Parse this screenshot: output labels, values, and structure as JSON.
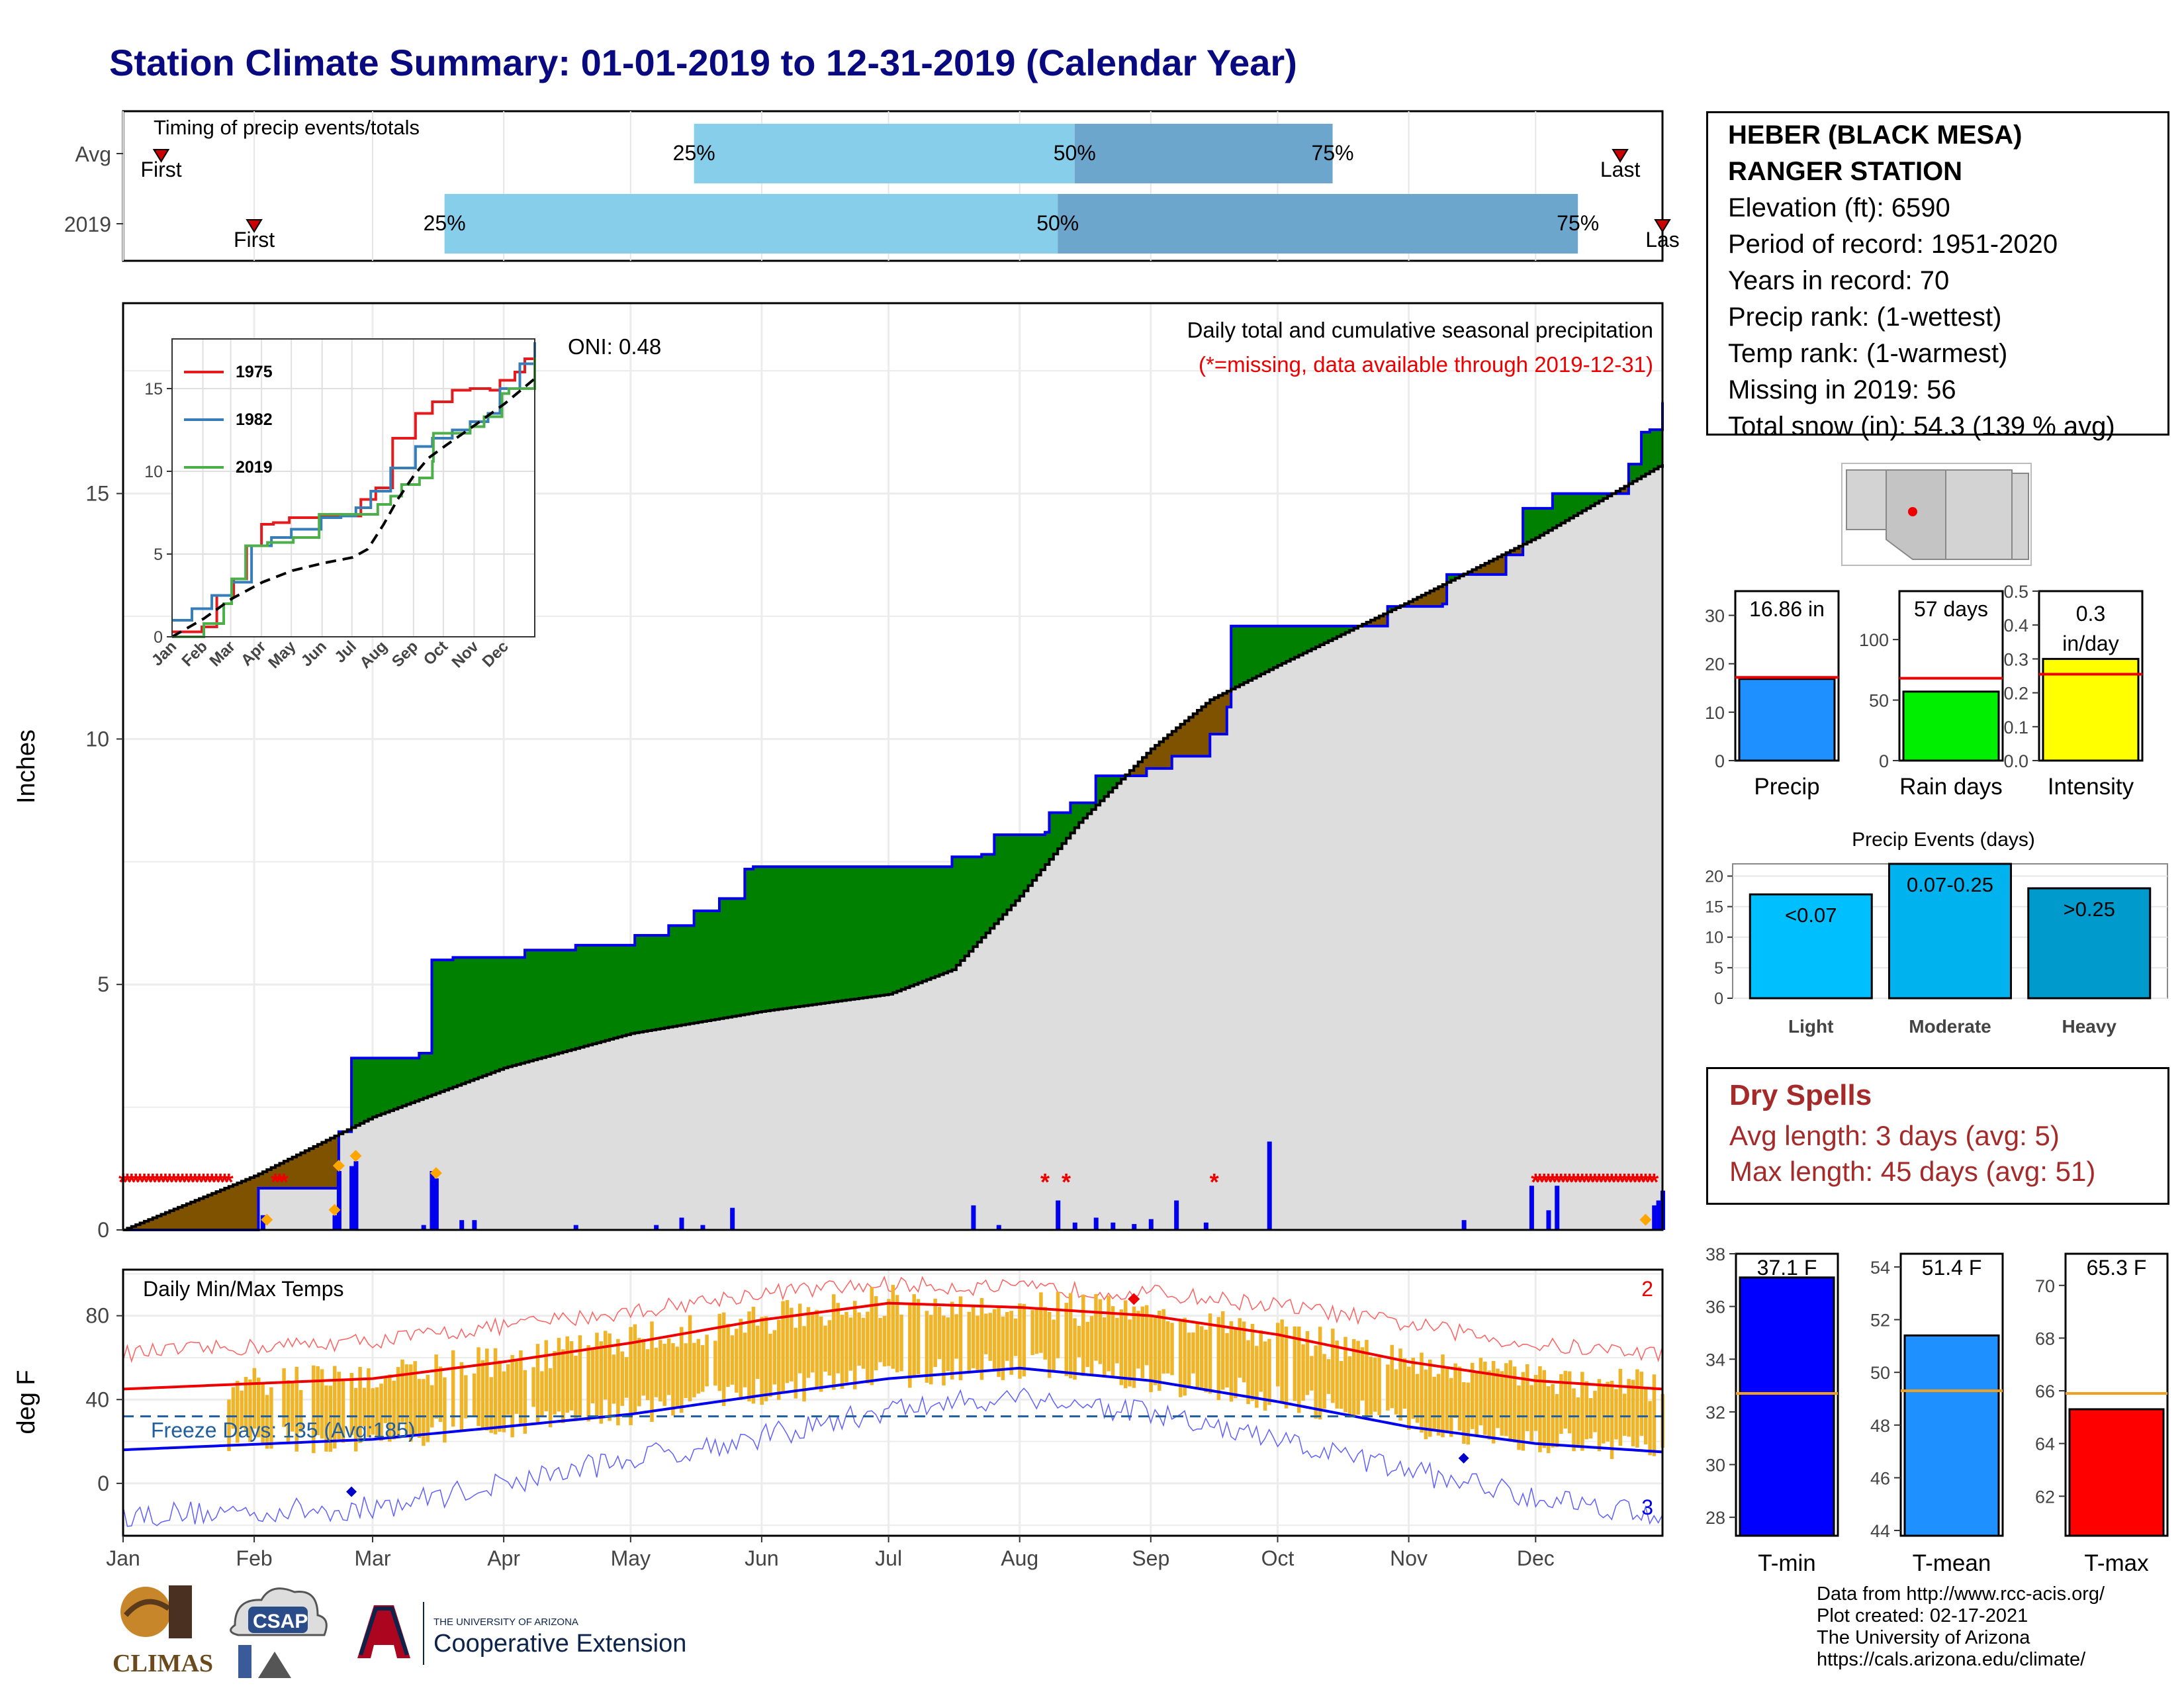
{
  "title": "Station Climate Summary: 01-01-2019 to 12-31-2019 (Calendar Year)",
  "station": {
    "name_line1": "HEBER (BLACK MESA)",
    "name_line2": "RANGER STATION",
    "elevation": "Elevation (ft): 6590",
    "period": "Period of record: 1951-2020",
    "years": "Years in record: 70",
    "precip_rank": "Precip rank:  (1-wettest)",
    "temp_rank": "Temp rank:  (1-warmest)",
    "missing": "Missing in 2019: 56",
    "snow": "Total snow (in): 54.3 (139 % avg)"
  },
  "dry_spells": {
    "title": "Dry Spells",
    "avg": "Avg length: 3 days (avg: 5)",
    "max": "Max length: 45 days (avg: 51)"
  },
  "credits": {
    "line1": "Data from http://www.rcc-acis.org/",
    "line2": "Plot created: 02-17-2021",
    "line3": "The University of Arizona",
    "line4": "https://cals.arizona.edu/climate/"
  },
  "logos": {
    "climas": "CLIMAS",
    "csap": "CSAP",
    "ua_small": "THE UNIVERSITY OF ARIZONA",
    "ua_ext": "Cooperative Extension"
  },
  "colors": {
    "title": "#0a0a80",
    "above": "#008000",
    "below": "#7f5200",
    "normal_fill": "#dddddd",
    "bar_light": "#87ceeb",
    "bar_dark": "#6ca6cd",
    "temp_bar": "#f0b429",
    "tmax_line": "#ff0000",
    "tmin_line": "#0000ff"
  },
  "chart_data": [
    {
      "type": "bar",
      "name": "timing",
      "title": "Timing of precip events/totals",
      "categories": [
        "Avg",
        "2019"
      ],
      "x_range_days": [
        1,
        365
      ],
      "series": [
        {
          "name": "Avg",
          "first": 10,
          "q25": 136,
          "q50": 226,
          "q75": 287,
          "last": 355
        },
        {
          "name": "2019",
          "first": 32,
          "q25": 77,
          "q50": 222,
          "q75": 345,
          "last": 365
        }
      ],
      "labels": {
        "first": "First",
        "last": "Last",
        "q25": "25%",
        "q50": "50%",
        "q75": "75%"
      },
      "display": {
        "last_2019": "Las"
      }
    },
    {
      "type": "area",
      "name": "precip",
      "title": "Daily total and cumulative seasonal precipitation",
      "subtitle": "(*=missing, data available through 2019-12-31)",
      "annotation": "ONI: 0.48",
      "ylabel": "Inches",
      "ylim": [
        0,
        18.5
      ],
      "yticks": [
        0,
        5,
        10,
        15
      ],
      "x_months": [
        "Jan",
        "Feb",
        "Mar",
        "Apr",
        "May",
        "Jun",
        "Jul",
        "Aug",
        "Sep",
        "Oct",
        "Nov",
        "Dec"
      ],
      "observed_cum": [
        [
          1,
          0
        ],
        [
          33,
          0.85
        ],
        [
          51,
          0.85
        ],
        [
          52,
          2.0
        ],
        [
          55,
          3.5
        ],
        [
          71,
          3.6
        ],
        [
          74,
          5.5
        ],
        [
          79,
          5.55
        ],
        [
          96,
          5.7
        ],
        [
          108,
          5.8
        ],
        [
          122,
          6.0
        ],
        [
          130,
          6.2
        ],
        [
          136,
          6.5
        ],
        [
          142,
          6.75
        ],
        [
          148,
          7.35
        ],
        [
          150,
          7.4
        ],
        [
          195,
          7.4
        ],
        [
          197,
          7.6
        ],
        [
          204,
          7.65
        ],
        [
          207,
          8.05
        ],
        [
          219,
          8.1
        ],
        [
          220,
          8.5
        ],
        [
          225,
          8.7
        ],
        [
          231,
          9.25
        ],
        [
          243,
          9.4
        ],
        [
          249,
          9.65
        ],
        [
          258,
          10.1
        ],
        [
          262,
          10.65
        ],
        [
          263,
          12.3
        ],
        [
          285,
          12.3
        ],
        [
          300,
          12.7
        ],
        [
          313,
          12.75
        ],
        [
          314,
          13.35
        ],
        [
          328,
          13.75
        ],
        [
          332,
          14.7
        ],
        [
          339,
          15.0
        ],
        [
          354,
          15.0
        ],
        [
          357,
          15.6
        ],
        [
          360,
          16.25
        ],
        [
          362,
          16.3
        ],
        [
          365,
          16.86
        ]
      ],
      "normal_cum": [
        [
          1,
          0
        ],
        [
          32,
          1.1
        ],
        [
          60,
          2.3
        ],
        [
          91,
          3.3
        ],
        [
          121,
          4.0
        ],
        [
          152,
          4.45
        ],
        [
          182,
          4.8
        ],
        [
          197,
          5.3
        ],
        [
          213,
          6.8
        ],
        [
          227,
          8.3
        ],
        [
          244,
          9.8
        ],
        [
          258,
          10.8
        ],
        [
          274,
          11.5
        ],
        [
          305,
          12.8
        ],
        [
          335,
          14.1
        ],
        [
          365,
          15.6
        ]
      ],
      "daily_bars": [
        [
          34,
          0.3
        ],
        [
          51,
          0.3
        ],
        [
          52,
          1.2
        ],
        [
          55,
          1.3
        ],
        [
          56,
          1.4
        ],
        [
          72,
          0.1
        ],
        [
          74,
          1.2
        ],
        [
          75,
          1.05
        ],
        [
          81,
          0.2
        ],
        [
          84,
          0.2
        ],
        [
          108,
          0.1
        ],
        [
          127,
          0.1
        ],
        [
          133,
          0.25
        ],
        [
          138,
          0.1
        ],
        [
          145,
          0.45
        ],
        [
          202,
          0.5
        ],
        [
          208,
          0.1
        ],
        [
          222,
          0.6
        ],
        [
          226,
          0.15
        ],
        [
          231,
          0.25
        ],
        [
          235,
          0.15
        ],
        [
          240,
          0.12
        ],
        [
          244,
          0.22
        ],
        [
          250,
          0.6
        ],
        [
          257,
          0.15
        ],
        [
          272,
          1.8
        ],
        [
          318,
          0.2
        ],
        [
          334,
          0.9
        ],
        [
          338,
          0.4
        ],
        [
          340,
          0.9
        ],
        [
          363,
          0.5
        ],
        [
          364,
          0.6
        ],
        [
          365,
          0.8
        ]
      ],
      "missing_days": [
        1,
        2,
        3,
        4,
        5,
        6,
        7,
        8,
        9,
        10,
        11,
        12,
        13,
        14,
        15,
        16,
        17,
        18,
        19,
        20,
        21,
        22,
        23,
        24,
        25,
        26,
        37,
        38,
        39,
        219,
        224,
        259,
        335,
        336,
        337,
        338,
        339,
        340,
        341,
        342,
        343,
        344,
        345,
        346,
        347,
        348,
        349,
        350,
        351,
        352,
        353,
        354,
        355,
        356,
        357,
        358,
        359,
        360,
        361,
        362,
        363
      ],
      "snow_days": [
        35,
        51,
        52,
        56,
        75,
        361
      ]
    },
    {
      "type": "line",
      "name": "inset",
      "x_months": [
        "Jan",
        "Feb",
        "Mar",
        "Apr",
        "May",
        "Jun",
        "Jul",
        "Aug",
        "Sep",
        "Oct",
        "Nov",
        "Dec"
      ],
      "ylim": [
        0,
        18
      ],
      "yticks": [
        0,
        5,
        10,
        15
      ],
      "series": [
        {
          "name": "1975",
          "color": "#e41a1c",
          "values": [
            [
              0,
              0.3
            ],
            [
              30,
              0.6
            ],
            [
              45,
              2.5
            ],
            [
              62,
              3.5
            ],
            [
              75,
              5.5
            ],
            [
              90,
              6.8
            ],
            [
              102,
              6.9
            ],
            [
              118,
              7.2
            ],
            [
              150,
              7.3
            ],
            [
              178,
              7.3
            ],
            [
              190,
              8.3
            ],
            [
              205,
              9.0
            ],
            [
              222,
              12.0
            ],
            [
              245,
              13.5
            ],
            [
              262,
              14.2
            ],
            [
              282,
              14.9
            ],
            [
              300,
              15.0
            ],
            [
              320,
              14.9
            ],
            [
              330,
              15.5
            ],
            [
              345,
              16.0
            ],
            [
              355,
              16.8
            ],
            [
              365,
              17.2
            ]
          ]
        },
        {
          "name": "1982",
          "color": "#377eb8",
          "values": [
            [
              0,
              1.0
            ],
            [
              20,
              1.7
            ],
            [
              40,
              2.5
            ],
            [
              60,
              3.3
            ],
            [
              80,
              5.5
            ],
            [
              100,
              6.0
            ],
            [
              120,
              6.5
            ],
            [
              150,
              7.2
            ],
            [
              170,
              7.3
            ],
            [
              185,
              7.8
            ],
            [
              200,
              8.8
            ],
            [
              220,
              10.2
            ],
            [
              245,
              11.5
            ],
            [
              262,
              12.0
            ],
            [
              282,
              12.5
            ],
            [
              300,
              13.0
            ],
            [
              318,
              13.5
            ],
            [
              330,
              15.0
            ],
            [
              350,
              16.5
            ],
            [
              365,
              17.8
            ]
          ]
        },
        {
          "name": "2019",
          "color": "#4daf4a",
          "values": [
            [
              0,
              0
            ],
            [
              32,
              0.8
            ],
            [
              52,
              2.0
            ],
            [
              60,
              3.5
            ],
            [
              74,
              5.5
            ],
            [
              96,
              5.7
            ],
            [
              122,
              6.0
            ],
            [
              148,
              7.4
            ],
            [
              195,
              7.4
            ],
            [
              207,
              8.0
            ],
            [
              220,
              8.5
            ],
            [
              231,
              9.2
            ],
            [
              249,
              9.6
            ],
            [
              262,
              10.6
            ],
            [
              263,
              12.3
            ],
            [
              285,
              12.3
            ],
            [
              300,
              12.7
            ],
            [
              314,
              13.3
            ],
            [
              332,
              14.7
            ],
            [
              339,
              15.0
            ],
            [
              354,
              15.0
            ],
            [
              365,
              16.9
            ]
          ]
        },
        {
          "name": "normal",
          "values": [
            [
              0,
              0
            ],
            [
              32,
              1.1
            ],
            [
              60,
              2.3
            ],
            [
              91,
              3.3
            ],
            [
              121,
              4.0
            ],
            [
              152,
              4.45
            ],
            [
              182,
              4.8
            ],
            [
              197,
              5.3
            ],
            [
              213,
              6.8
            ],
            [
              227,
              8.3
            ],
            [
              244,
              9.8
            ],
            [
              258,
              10.8
            ],
            [
              274,
              11.5
            ],
            [
              305,
              12.8
            ],
            [
              335,
              14.1
            ],
            [
              365,
              15.6
            ]
          ]
        }
      ]
    },
    {
      "type": "bar",
      "name": "precip_total",
      "value": 16.86,
      "normal": 17.2,
      "ylim": [
        0,
        35
      ],
      "yticks": [
        0,
        10,
        20,
        30
      ],
      "label": "16.86 in",
      "xlabel": "Precip",
      "color": "#1e90ff"
    },
    {
      "type": "bar",
      "name": "rain_days",
      "value": 57,
      "normal": 68,
      "ylim": [
        0,
        140
      ],
      "yticks": [
        0,
        50,
        100
      ],
      "label": "57 days",
      "xlabel": "Rain days",
      "color": "#00ee00"
    },
    {
      "type": "bar",
      "name": "intensity",
      "value": 0.3,
      "normal": 0.255,
      "ylim": [
        0,
        0.5
      ],
      "yticks": [
        0.0,
        0.1,
        0.2,
        0.3,
        0.4,
        0.5
      ],
      "label": "0.3",
      "label2": "in/day",
      "xlabel": "Intensity",
      "color": "#ffff00"
    },
    {
      "type": "bar",
      "name": "precip_events",
      "title": "Precip Events (days)",
      "categories": [
        "Light",
        "Moderate",
        "Heavy"
      ],
      "values": [
        17,
        22,
        18
      ],
      "labels": [
        "<0.07",
        "0.07-0.25",
        ">0.25"
      ],
      "ylim": [
        0,
        22
      ],
      "yticks": [
        0,
        5,
        10,
        15,
        20
      ],
      "colors": [
        "#00bfff",
        "#00b2ee",
        "#009acd"
      ]
    },
    {
      "type": "bar",
      "name": "temps",
      "title": "Daily Min/Max Temps",
      "ylabel": "deg F",
      "ylim": [
        -25,
        102
      ],
      "yticks": [
        0,
        40,
        80
      ],
      "freeze_line": 32,
      "freeze_label": "Freeze Days: 135 (Avg:185)",
      "corner_top": "2",
      "corner_bottom": "3",
      "x_months": [
        "Jan",
        "Feb",
        "Mar",
        "Apr",
        "May",
        "Jun",
        "Jul",
        "Aug",
        "Sep",
        "Oct",
        "Nov",
        "Dec"
      ],
      "avg_tmax": [
        [
          1,
          45
        ],
        [
          60,
          50
        ],
        [
          91,
          58
        ],
        [
          121,
          67
        ],
        [
          152,
          78
        ],
        [
          182,
          86
        ],
        [
          213,
          84
        ],
        [
          244,
          80
        ],
        [
          274,
          71
        ],
        [
          305,
          58
        ],
        [
          335,
          49
        ],
        [
          365,
          45
        ]
      ],
      "avg_tmin": [
        [
          1,
          16
        ],
        [
          60,
          21
        ],
        [
          91,
          27
        ],
        [
          121,
          33
        ],
        [
          152,
          42
        ],
        [
          182,
          50
        ],
        [
          213,
          55
        ],
        [
          244,
          49
        ],
        [
          274,
          39
        ],
        [
          305,
          27
        ],
        [
          335,
          19
        ],
        [
          365,
          15
        ]
      ],
      "rec_tmax": [
        [
          1,
          62
        ],
        [
          60,
          68
        ],
        [
          91,
          75
        ],
        [
          121,
          82
        ],
        [
          152,
          91
        ],
        [
          182,
          95
        ],
        [
          213,
          93
        ],
        [
          244,
          91
        ],
        [
          274,
          85
        ],
        [
          305,
          76
        ],
        [
          335,
          66
        ],
        [
          365,
          62
        ]
      ],
      "rec_tmin": [
        [
          1,
          -15
        ],
        [
          60,
          -12
        ],
        [
          91,
          0
        ],
        [
          121,
          12
        ],
        [
          152,
          22
        ],
        [
          182,
          35
        ],
        [
          213,
          42
        ],
        [
          244,
          33
        ],
        [
          274,
          20
        ],
        [
          305,
          6
        ],
        [
          335,
          -6
        ],
        [
          365,
          -15
        ]
      ],
      "obs_start_day": 26
    },
    {
      "type": "bar",
      "name": "tmin",
      "value": 37.1,
      "normal": 32.7,
      "ylim": [
        27.3,
        38
      ],
      "yticks": [
        28,
        30,
        32,
        34,
        36,
        38
      ],
      "label": "37.1 F",
      "xlabel": "T-min",
      "color": "#0000ff"
    },
    {
      "type": "bar",
      "name": "tmean",
      "value": 51.4,
      "normal": 49.3,
      "ylim": [
        43.8,
        54.5
      ],
      "yticks": [
        44,
        46,
        48,
        50,
        52,
        54
      ],
      "label": "51.4 F",
      "xlabel": "T-mean",
      "color": "#1e90ff"
    },
    {
      "type": "bar",
      "name": "tmax",
      "value": 65.3,
      "normal": 65.9,
      "ylim": [
        60.5,
        71.2
      ],
      "yticks": [
        62,
        64,
        66,
        68,
        70
      ],
      "label": "65.3 F",
      "xlabel": "T-max",
      "color": "#ff0000"
    }
  ]
}
